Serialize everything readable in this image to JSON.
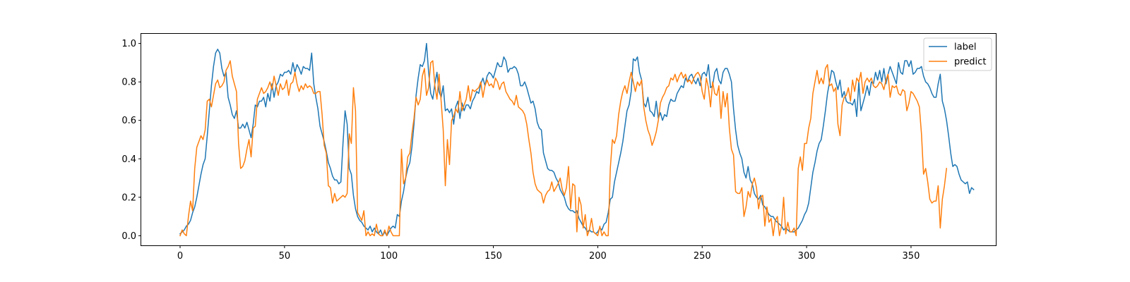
{
  "chart_data": {
    "type": "line",
    "title": "",
    "xlabel": "",
    "ylabel": "",
    "xlim": [
      -18.6,
      390.6
    ],
    "ylim": [
      -0.05,
      1.05
    ],
    "xticks": [
      0,
      50,
      100,
      150,
      200,
      250,
      300,
      350
    ],
    "yticks": [
      0.0,
      0.2,
      0.4,
      0.6,
      0.8,
      1.0
    ],
    "xtick_labels": [
      "0",
      "50",
      "100",
      "150",
      "200",
      "250",
      "300",
      "350"
    ],
    "ytick_labels": [
      "0.0",
      "0.2",
      "0.4",
      "0.6",
      "0.8",
      "1.0"
    ],
    "grid": false,
    "legend_position": "top-right",
    "series": [
      {
        "name": "label",
        "color": "#1f77b4",
        "values": [
          0.01,
          0.02,
          0.03,
          0.05,
          0.06,
          0.08,
          0.12,
          0.15,
          0.2,
          0.26,
          0.32,
          0.37,
          0.4,
          0.52,
          0.65,
          0.78,
          0.88,
          0.95,
          0.97,
          0.95,
          0.87,
          0.83,
          0.85,
          0.72,
          0.68,
          0.63,
          0.61,
          0.65,
          0.56,
          0.56,
          0.58,
          0.56,
          0.59,
          0.55,
          0.51,
          0.58,
          0.68,
          0.67,
          0.7,
          0.7,
          0.72,
          0.67,
          0.74,
          0.7,
          0.79,
          0.72,
          0.78,
          0.8,
          0.84,
          0.83,
          0.85,
          0.85,
          0.86,
          0.84,
          0.9,
          0.85,
          0.89,
          0.87,
          0.84,
          0.88,
          0.87,
          0.87,
          0.86,
          0.95,
          0.79,
          0.72,
          0.66,
          0.57,
          0.53,
          0.49,
          0.44,
          0.38,
          0.35,
          0.31,
          0.29,
          0.29,
          0.27,
          0.28,
          0.48,
          0.65,
          0.58,
          0.35,
          0.32,
          0.21,
          0.14,
          0.1,
          0.08,
          0.07,
          0.05,
          0.04,
          0.03,
          0.05,
          0.02,
          0.04,
          0.02,
          0.01,
          0.03,
          0.0,
          0.02,
          0.0,
          0.02,
          0.04,
          0.05,
          0.04,
          0.11,
          0.1,
          0.18,
          0.23,
          0.3,
          0.35,
          0.38,
          0.46,
          0.58,
          0.73,
          0.82,
          0.89,
          0.88,
          0.91,
          1.0,
          0.85,
          0.74,
          0.71,
          0.79,
          0.85,
          0.75,
          0.72,
          0.78,
          0.65,
          0.66,
          0.64,
          0.66,
          0.58,
          0.67,
          0.7,
          0.61,
          0.69,
          0.65,
          0.68,
          0.68,
          0.66,
          0.7,
          0.72,
          0.75,
          0.74,
          0.79,
          0.82,
          0.78,
          0.83,
          0.85,
          0.84,
          0.82,
          0.86,
          0.9,
          0.88,
          0.88,
          0.93,
          0.91,
          0.85,
          0.87,
          0.87,
          0.88,
          0.87,
          0.84,
          0.78,
          0.78,
          0.8,
          0.77,
          0.73,
          0.69,
          0.7,
          0.66,
          0.59,
          0.56,
          0.55,
          0.43,
          0.39,
          0.35,
          0.34,
          0.34,
          0.33,
          0.3,
          0.28,
          0.24,
          0.22,
          0.2,
          0.16,
          0.14,
          0.13,
          0.13,
          0.12,
          0.13,
          0.09,
          0.07,
          0.05,
          0.04,
          0.02,
          0.03,
          0.02,
          0.02,
          0.01,
          0.02,
          0.04,
          0.03,
          0.06,
          0.07,
          0.12,
          0.19,
          0.2,
          0.28,
          0.33,
          0.38,
          0.43,
          0.49,
          0.57,
          0.65,
          0.68,
          0.75,
          0.92,
          0.91,
          0.93,
          0.85,
          0.81,
          0.69,
          0.67,
          0.72,
          0.65,
          0.64,
          0.62,
          0.7,
          0.61,
          0.64,
          0.6,
          0.63,
          0.62,
          0.68,
          0.71,
          0.7,
          0.7,
          0.74,
          0.76,
          0.78,
          0.77,
          0.82,
          0.8,
          0.83,
          0.84,
          0.81,
          0.79,
          0.82,
          0.78,
          0.84,
          0.85,
          0.83,
          0.89,
          0.77,
          0.78,
          0.85,
          0.87,
          0.81,
          0.79,
          0.85,
          0.87,
          0.87,
          0.84,
          0.8,
          0.66,
          0.55,
          0.47,
          0.43,
          0.4,
          0.33,
          0.3,
          0.36,
          0.29,
          0.27,
          0.22,
          0.2,
          0.19,
          0.21,
          0.16,
          0.15,
          0.13,
          0.11,
          0.1,
          0.1,
          0.08,
          0.07,
          0.06,
          0.05,
          0.03,
          0.04,
          0.03,
          0.02,
          0.02,
          0.02,
          0.03,
          0.04,
          0.06,
          0.08,
          0.11,
          0.13,
          0.17,
          0.25,
          0.33,
          0.38,
          0.44,
          0.48,
          0.5,
          0.57,
          0.65,
          0.74,
          0.8,
          0.86,
          0.85,
          0.8,
          0.76,
          0.81,
          0.72,
          0.75,
          0.7,
          0.69,
          0.69,
          0.68,
          0.71,
          0.62,
          0.8,
          0.65,
          0.69,
          0.73,
          0.78,
          0.73,
          0.8,
          0.79,
          0.85,
          0.81,
          0.86,
          0.8,
          0.87,
          0.79,
          0.84,
          0.88,
          0.85,
          0.82,
          0.79,
          0.9,
          0.85,
          0.84,
          0.91,
          0.91,
          0.88,
          0.91,
          0.84,
          0.85,
          0.87,
          0.87,
          0.88,
          0.83,
          0.8,
          0.79,
          0.77,
          0.74,
          0.72,
          0.72,
          0.79,
          0.84,
          0.7,
          0.66,
          0.6,
          0.52,
          0.43,
          0.36,
          0.37,
          0.36,
          0.32,
          0.29,
          0.28,
          0.27,
          0.28,
          0.22,
          0.25,
          0.24
        ]
      },
      {
        "name": "predict",
        "color": "#ff7f0e",
        "values": [
          0.0,
          0.03,
          0.01,
          0.0,
          0.1,
          0.18,
          0.13,
          0.35,
          0.46,
          0.49,
          0.52,
          0.5,
          0.55,
          0.7,
          0.71,
          0.67,
          0.73,
          0.79,
          0.81,
          0.77,
          0.78,
          0.8,
          0.86,
          0.88,
          0.91,
          0.83,
          0.79,
          0.75,
          0.48,
          0.35,
          0.36,
          0.39,
          0.45,
          0.5,
          0.41,
          0.56,
          0.57,
          0.71,
          0.74,
          0.77,
          0.74,
          0.75,
          0.77,
          0.8,
          0.76,
          0.83,
          0.78,
          0.73,
          0.79,
          0.76,
          0.77,
          0.81,
          0.73,
          0.79,
          0.8,
          0.85,
          0.79,
          0.75,
          0.78,
          0.76,
          0.79,
          0.77,
          0.78,
          0.77,
          0.74,
          0.74,
          0.75,
          0.75,
          0.63,
          0.47,
          0.43,
          0.26,
          0.25,
          0.17,
          0.22,
          0.18,
          0.19,
          0.2,
          0.21,
          0.2,
          0.22,
          0.53,
          0.48,
          0.77,
          0.65,
          0.12,
          0.1,
          0.08,
          0.13,
          0.0,
          0.02,
          0.0,
          0.01,
          0.0,
          0.06,
          0.01,
          0.0,
          0.0,
          0.03,
          0.0,
          0.05,
          0.02,
          0.0,
          0.0,
          0.0,
          0.0,
          0.45,
          0.27,
          0.3,
          0.41,
          0.43,
          0.53,
          0.61,
          0.72,
          0.68,
          0.71,
          0.83,
          0.87,
          0.73,
          0.77,
          0.9,
          0.91,
          0.78,
          0.71,
          0.84,
          0.7,
          0.55,
          0.26,
          0.5,
          0.37,
          0.6,
          0.62,
          0.66,
          0.64,
          0.75,
          0.65,
          0.68,
          0.71,
          0.78,
          0.7,
          0.76,
          0.75,
          0.76,
          0.77,
          0.8,
          0.72,
          0.78,
          0.81,
          0.78,
          0.79,
          0.77,
          0.82,
          0.8,
          0.76,
          0.79,
          0.8,
          0.75,
          0.73,
          0.71,
          0.7,
          0.68,
          0.73,
          0.67,
          0.66,
          0.65,
          0.63,
          0.58,
          0.5,
          0.43,
          0.33,
          0.27,
          0.24,
          0.23,
          0.22,
          0.17,
          0.21,
          0.23,
          0.24,
          0.28,
          0.23,
          0.25,
          0.27,
          0.3,
          0.24,
          0.21,
          0.25,
          0.36,
          0.14,
          0.27,
          0.26,
          0.02,
          0.2,
          0.16,
          0.04,
          0.11,
          0.0,
          0.03,
          0.09,
          0.02,
          0.01,
          0.0,
          0.05,
          0.0,
          0.02,
          0.0,
          0.0,
          0.35,
          0.5,
          0.48,
          0.52,
          0.63,
          0.7,
          0.75,
          0.78,
          0.74,
          0.8,
          0.85,
          0.8,
          0.75,
          0.8,
          0.78,
          0.81,
          0.67,
          0.6,
          0.55,
          0.52,
          0.47,
          0.5,
          0.54,
          0.6,
          0.69,
          0.72,
          0.74,
          0.77,
          0.78,
          0.82,
          0.81,
          0.84,
          0.8,
          0.83,
          0.85,
          0.82,
          0.84,
          0.8,
          0.81,
          0.79,
          0.82,
          0.84,
          0.85,
          0.83,
          0.75,
          0.71,
          0.82,
          0.77,
          0.67,
          0.8,
          0.74,
          0.73,
          0.78,
          0.61,
          0.75,
          0.67,
          0.74,
          0.56,
          0.45,
          0.42,
          0.23,
          0.22,
          0.22,
          0.25,
          0.1,
          0.15,
          0.23,
          0.2,
          0.27,
          0.3,
          0.25,
          0.14,
          0.2,
          0.21,
          0.05,
          0.15,
          0.07,
          0.09,
          0.0,
          0.08,
          0.1,
          0.0,
          0.05,
          0.2,
          0.01,
          0.07,
          0.02,
          0.02,
          0.04,
          0.0,
          0.35,
          0.41,
          0.34,
          0.48,
          0.48,
          0.56,
          0.61,
          0.74,
          0.8,
          0.86,
          0.79,
          0.82,
          0.79,
          0.87,
          0.89,
          0.78,
          0.79,
          0.75,
          0.77,
          0.58,
          0.52,
          0.68,
          0.72,
          0.73,
          0.77,
          0.7,
          0.81,
          0.75,
          0.82,
          0.8,
          0.85,
          0.74,
          0.8,
          0.82,
          0.8,
          0.82,
          0.78,
          0.77,
          0.78,
          0.8,
          0.79,
          0.76,
          0.81,
          0.84,
          0.72,
          0.78,
          0.77,
          0.78,
          0.74,
          0.73,
          0.76,
          0.75,
          0.65,
          0.69,
          0.75,
          0.74,
          0.72,
          0.7,
          0.67,
          0.53,
          0.32,
          0.35,
          0.28,
          0.19,
          0.17,
          0.18,
          0.18,
          0.26,
          0.04,
          0.19,
          0.26,
          0.35
        ]
      }
    ]
  }
}
